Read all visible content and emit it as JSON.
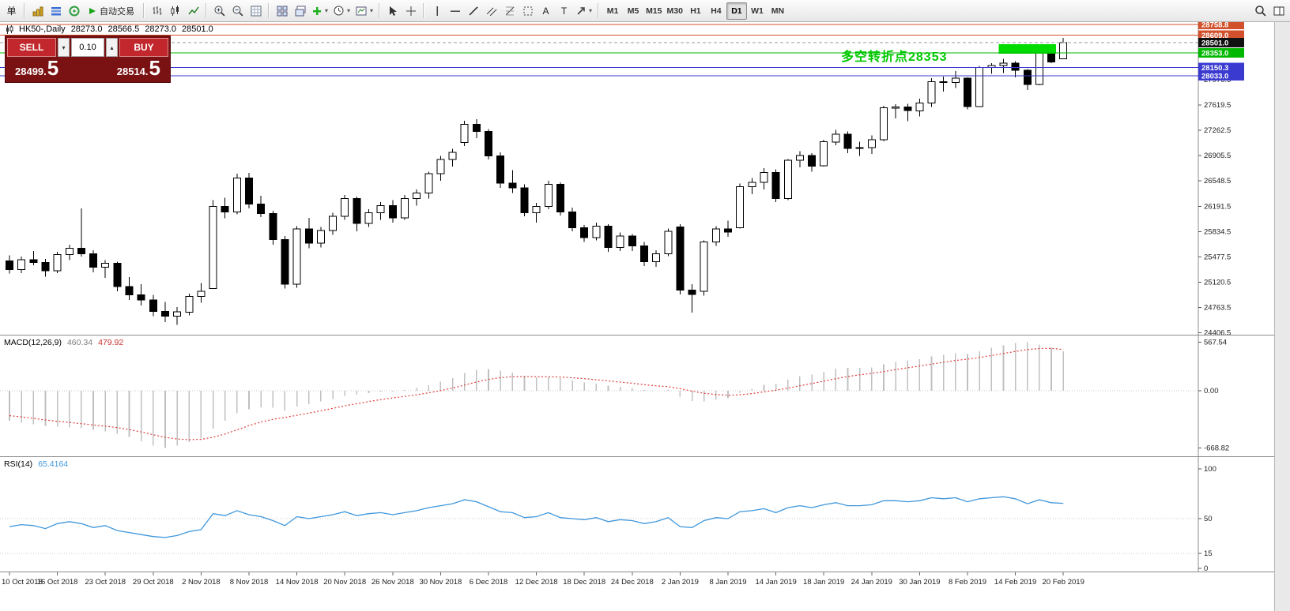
{
  "toolbar": {
    "new_order_label": "单",
    "autotrading_label": "自动交易",
    "text_tool_label": "A",
    "label_tool_label": "T",
    "timeframes": [
      "M1",
      "M5",
      "M15",
      "M30",
      "H1",
      "H4",
      "D1",
      "W1",
      "MN"
    ],
    "active_timeframe": "D1"
  },
  "chart": {
    "symbol_period": "HK50-,Daily",
    "ohlc": {
      "open": "28273.0",
      "high": "28566.5",
      "low": "28273.0",
      "close": "28501.0"
    },
    "annotation_text": "多空转折点28353",
    "annotation_color": "#00c800"
  },
  "one_click": {
    "sell_label": "SELL",
    "buy_label": "BUY",
    "lot_value": "0.10",
    "sell_price": "28499.",
    "sell_price_big": "5",
    "buy_price": "28514.",
    "buy_price_big": "5"
  },
  "chart_data": {
    "type": "candlestick",
    "symb": "HK50-",
    "period": "Daily",
    "colors": {
      "up": "#ffffff",
      "down": "#000000",
      "wick": "#000000",
      "macd_histogram": "#c0c0c0",
      "macd_signal": "#e03c3c",
      "rsi_line": "#3f97dc"
    },
    "x_tick_step": 4,
    "x_tick_labels": [
      "10 Oct 2018",
      "16 Oct 2018",
      "23 Oct 2018",
      "29 Oct 2018",
      "2 Nov 2018",
      "8 Nov 2018",
      "14 Nov 2018",
      "20 Nov 2018",
      "26 Nov 2018",
      "30 Nov 2018",
      "6 Dec 2018",
      "12 Dec 2018",
      "18 Dec 2018",
      "24 Dec 2018",
      "2 Jan 2019",
      "8 Jan 2019",
      "14 Jan 2019",
      "18 Jan 2019",
      "24 Jan 2019",
      "30 Jan 2019",
      "8 Feb 2019",
      "14 Feb 2019",
      "20 Feb 2019"
    ],
    "y_axis_labels": [
      27976.5,
      27619.5,
      27262.5,
      26905.5,
      26548.5,
      26191.5,
      25834.5,
      25477.5,
      25120.5,
      24763.5,
      24406.5
    ],
    "price_lines": [
      {
        "price": 28758.8,
        "label": "28758.8",
        "color": "#d2512c",
        "style": "solid"
      },
      {
        "price": 28609.0,
        "label": "28609.0",
        "color": "#d2512c",
        "style": "solid"
      },
      {
        "price": 28501.0,
        "label": "28501.0",
        "color": "#9a9a9a",
        "style": "dashed",
        "label_bg": "#111111"
      },
      {
        "price": 28353.0,
        "label": "28353.0",
        "color": "#00b800",
        "style": "solid"
      },
      {
        "price": 28150.3,
        "label": "28150.3",
        "color": "#3a3ad0",
        "style": "solid"
      },
      {
        "price": 28033.0,
        "label": "28033.0",
        "color": "#3a3ad0",
        "style": "solid"
      }
    ],
    "highlight_rect": {
      "start_index": 83,
      "end_index": 87,
      "price_top": 28478,
      "price_bottom": 28342,
      "color": "#00dc00"
    },
    "candles": [
      [
        25420,
        25500,
        25240,
        25300
      ],
      [
        25300,
        25480,
        25250,
        25440
      ],
      [
        25440,
        25560,
        25360,
        25400
      ],
      [
        25400,
        25450,
        25200,
        25280
      ],
      [
        25280,
        25550,
        25250,
        25510
      ],
      [
        25510,
        25650,
        25430,
        25600
      ],
      [
        25600,
        26160,
        25480,
        25520
      ],
      [
        25520,
        25570,
        25260,
        25330
      ],
      [
        25330,
        25430,
        25180,
        25390
      ],
      [
        25390,
        25410,
        24990,
        25060
      ],
      [
        25060,
        25190,
        24870,
        24940
      ],
      [
        24940,
        25090,
        24790,
        24870
      ],
      [
        24870,
        24940,
        24640,
        24710
      ],
      [
        24710,
        24840,
        24560,
        24640
      ],
      [
        24640,
        24770,
        24520,
        24700
      ],
      [
        24700,
        24960,
        24650,
        24920
      ],
      [
        24920,
        25110,
        24830,
        24990
      ],
      [
        25030,
        26280,
        25030,
        26190
      ],
      [
        26190,
        26310,
        26020,
        26110
      ],
      [
        26110,
        26650,
        26080,
        26590
      ],
      [
        26590,
        26660,
        26160,
        26220
      ],
      [
        26220,
        26340,
        26040,
        26090
      ],
      [
        26090,
        26130,
        25650,
        25720
      ],
      [
        25720,
        25770,
        25030,
        25090
      ],
      [
        25090,
        25910,
        25040,
        25870
      ],
      [
        25870,
        26030,
        25600,
        25670
      ],
      [
        25670,
        25900,
        25610,
        25850
      ],
      [
        25850,
        26100,
        25790,
        26050
      ],
      [
        26050,
        26350,
        26000,
        26300
      ],
      [
        26300,
        26330,
        25840,
        25950
      ],
      [
        25950,
        26150,
        25900,
        26100
      ],
      [
        26100,
        26250,
        26000,
        26200
      ],
      [
        26200,
        26280,
        25960,
        26030
      ],
      [
        26030,
        26350,
        26000,
        26300
      ],
      [
        26300,
        26430,
        26200,
        26380
      ],
      [
        26380,
        26680,
        26300,
        26650
      ],
      [
        26650,
        26900,
        26550,
        26850
      ],
      [
        26850,
        27000,
        26750,
        26950
      ],
      [
        27090,
        27400,
        27040,
        27350
      ],
      [
        27350,
        27420,
        27150,
        27250
      ],
      [
        27250,
        27280,
        26850,
        26900
      ],
      [
        26900,
        26950,
        26450,
        26520
      ],
      [
        26520,
        26700,
        26380,
        26450
      ],
      [
        26450,
        26500,
        26050,
        26100
      ],
      [
        26100,
        26240,
        25960,
        26190
      ],
      [
        26190,
        26550,
        26150,
        26500
      ],
      [
        26500,
        26530,
        26060,
        26110
      ],
      [
        26110,
        26170,
        25840,
        25890
      ],
      [
        25890,
        25930,
        25690,
        25750
      ],
      [
        25750,
        25960,
        25710,
        25910
      ],
      [
        25910,
        25940,
        25550,
        25610
      ],
      [
        25610,
        25820,
        25560,
        25770
      ],
      [
        25770,
        25800,
        25560,
        25630
      ],
      [
        25630,
        25690,
        25350,
        25410
      ],
      [
        25410,
        25570,
        25340,
        25520
      ],
      [
        25520,
        25880,
        25490,
        25840
      ],
      [
        25900,
        25940,
        24950,
        25010
      ],
      [
        25010,
        25090,
        24690,
        24950
      ],
      [
        24990,
        25710,
        24930,
        25690
      ],
      [
        25690,
        25910,
        25630,
        25870
      ],
      [
        25870,
        25990,
        25760,
        25830
      ],
      [
        25890,
        26510,
        25880,
        26470
      ],
      [
        26470,
        26590,
        26360,
        26530
      ],
      [
        26530,
        26730,
        26430,
        26670
      ],
      [
        26670,
        26710,
        26250,
        26300
      ],
      [
        26300,
        26860,
        26280,
        26840
      ],
      [
        26840,
        26970,
        26740,
        26910
      ],
      [
        26910,
        26940,
        26680,
        26760
      ],
      [
        26760,
        27130,
        26750,
        27100
      ],
      [
        27100,
        27270,
        27050,
        27210
      ],
      [
        27210,
        27250,
        26940,
        27010
      ],
      [
        27010,
        27100,
        26900,
        27020
      ],
      [
        27020,
        27190,
        26930,
        27130
      ],
      [
        27130,
        27610,
        27110,
        27580
      ],
      [
        27580,
        27630,
        27430,
        27590
      ],
      [
        27590,
        27640,
        27390,
        27540
      ],
      [
        27540,
        27710,
        27460,
        27650
      ],
      [
        27650,
        28000,
        27590,
        27950
      ],
      [
        27950,
        28020,
        27810,
        27940
      ],
      [
        27940,
        28100,
        27860,
        28000
      ],
      [
        28000,
        28010,
        27560,
        27600
      ],
      [
        27600,
        28170,
        27590,
        28150
      ],
      [
        28150,
        28210,
        28060,
        28180
      ],
      [
        28180,
        28270,
        28070,
        28210
      ],
      [
        28210,
        28240,
        28010,
        28110
      ],
      [
        28110,
        28130,
        27830,
        27910
      ],
      [
        27910,
        28370,
        27900,
        28350
      ],
      [
        28350,
        28430,
        28210,
        28230
      ],
      [
        28273,
        28566.5,
        28273,
        28501
      ]
    ],
    "macd": {
      "name": "MACD(12,26,9)",
      "value_main": "460.34",
      "value_signal": "479.92",
      "scale": [
        {
          "value": 567.54,
          "label": "567.54"
        },
        {
          "value": 0,
          "label": "0.00"
        },
        {
          "value": -668.82,
          "label": "-668.82"
        }
      ],
      "histogram": [
        -350,
        -372,
        -390,
        -410,
        -420,
        -428,
        -438,
        -455,
        -472,
        -500,
        -540,
        -590,
        -640,
        -668.82,
        -640,
        -600,
        -555,
        -440,
        -350,
        -260,
        -215,
        -195,
        -200,
        -230,
        -185,
        -155,
        -125,
        -95,
        -60,
        -45,
        -28,
        -12,
        -8,
        8,
        30,
        65,
        105,
        145,
        205,
        245,
        255,
        235,
        210,
        175,
        155,
        158,
        148,
        120,
        95,
        82,
        58,
        45,
        30,
        8,
        0,
        12,
        -70,
        -120,
        -125,
        -105,
        -88,
        -25,
        25,
        68,
        82,
        128,
        168,
        188,
        222,
        258,
        268,
        265,
        272,
        308,
        338,
        352,
        368,
        398,
        420,
        438,
        430,
        462,
        500,
        530,
        555,
        567.54,
        540,
        500,
        460.34
      ],
      "signal": [
        -290,
        -305,
        -322,
        -340,
        -356,
        -370,
        -384,
        -398,
        -413,
        -430,
        -452,
        -480,
        -512,
        -543,
        -562,
        -570,
        -567,
        -542,
        -504,
        -455,
        -407,
        -365,
        -332,
        -311,
        -286,
        -260,
        -233,
        -205,
        -176,
        -150,
        -126,
        -103,
        -84,
        -66,
        -47,
        -24,
        2,
        31,
        66,
        102,
        132,
        153,
        164,
        166,
        164,
        163,
        160,
        152,
        141,
        129,
        115,
        101,
        87,
        71,
        57,
        48,
        24,
        -5,
        -29,
        -44,
        -53,
        -47,
        -33,
        -13,
        6,
        30,
        58,
        84,
        112,
        141,
        166,
        186,
        203,
        224,
        247,
        268,
        288,
        310,
        332,
        353,
        368,
        387,
        410,
        434,
        458,
        480,
        492,
        494,
        479.92
      ]
    },
    "rsi": {
      "name": "RSI(14)",
      "value": "65.4164",
      "scale": [
        {
          "value": 100,
          "label": "100"
        },
        {
          "value": 50,
          "label": "50"
        },
        {
          "value": 15,
          "label": "15"
        },
        {
          "value": 0,
          "label": "0"
        }
      ],
      "levels": [
        50,
        15
      ],
      "values": [
        42,
        44,
        43,
        40,
        45,
        47,
        45,
        41,
        43,
        38,
        36,
        34,
        32,
        31,
        33,
        37,
        39,
        55,
        53,
        58,
        54,
        52,
        48,
        43,
        52,
        50,
        52,
        54,
        57,
        53,
        55,
        56,
        54,
        56,
        58,
        61,
        63,
        65,
        69,
        67,
        62,
        57,
        56,
        51,
        52,
        56,
        51,
        50,
        49,
        51,
        47,
        49,
        48,
        45,
        47,
        51,
        42,
        41,
        48,
        51,
        50,
        57,
        58,
        60,
        56,
        61,
        63,
        61,
        64,
        66,
        63,
        63,
        64,
        68,
        68,
        67,
        68,
        71,
        70,
        71,
        67,
        70,
        71,
        72,
        70,
        65,
        69,
        66,
        65.4164
      ]
    }
  }
}
